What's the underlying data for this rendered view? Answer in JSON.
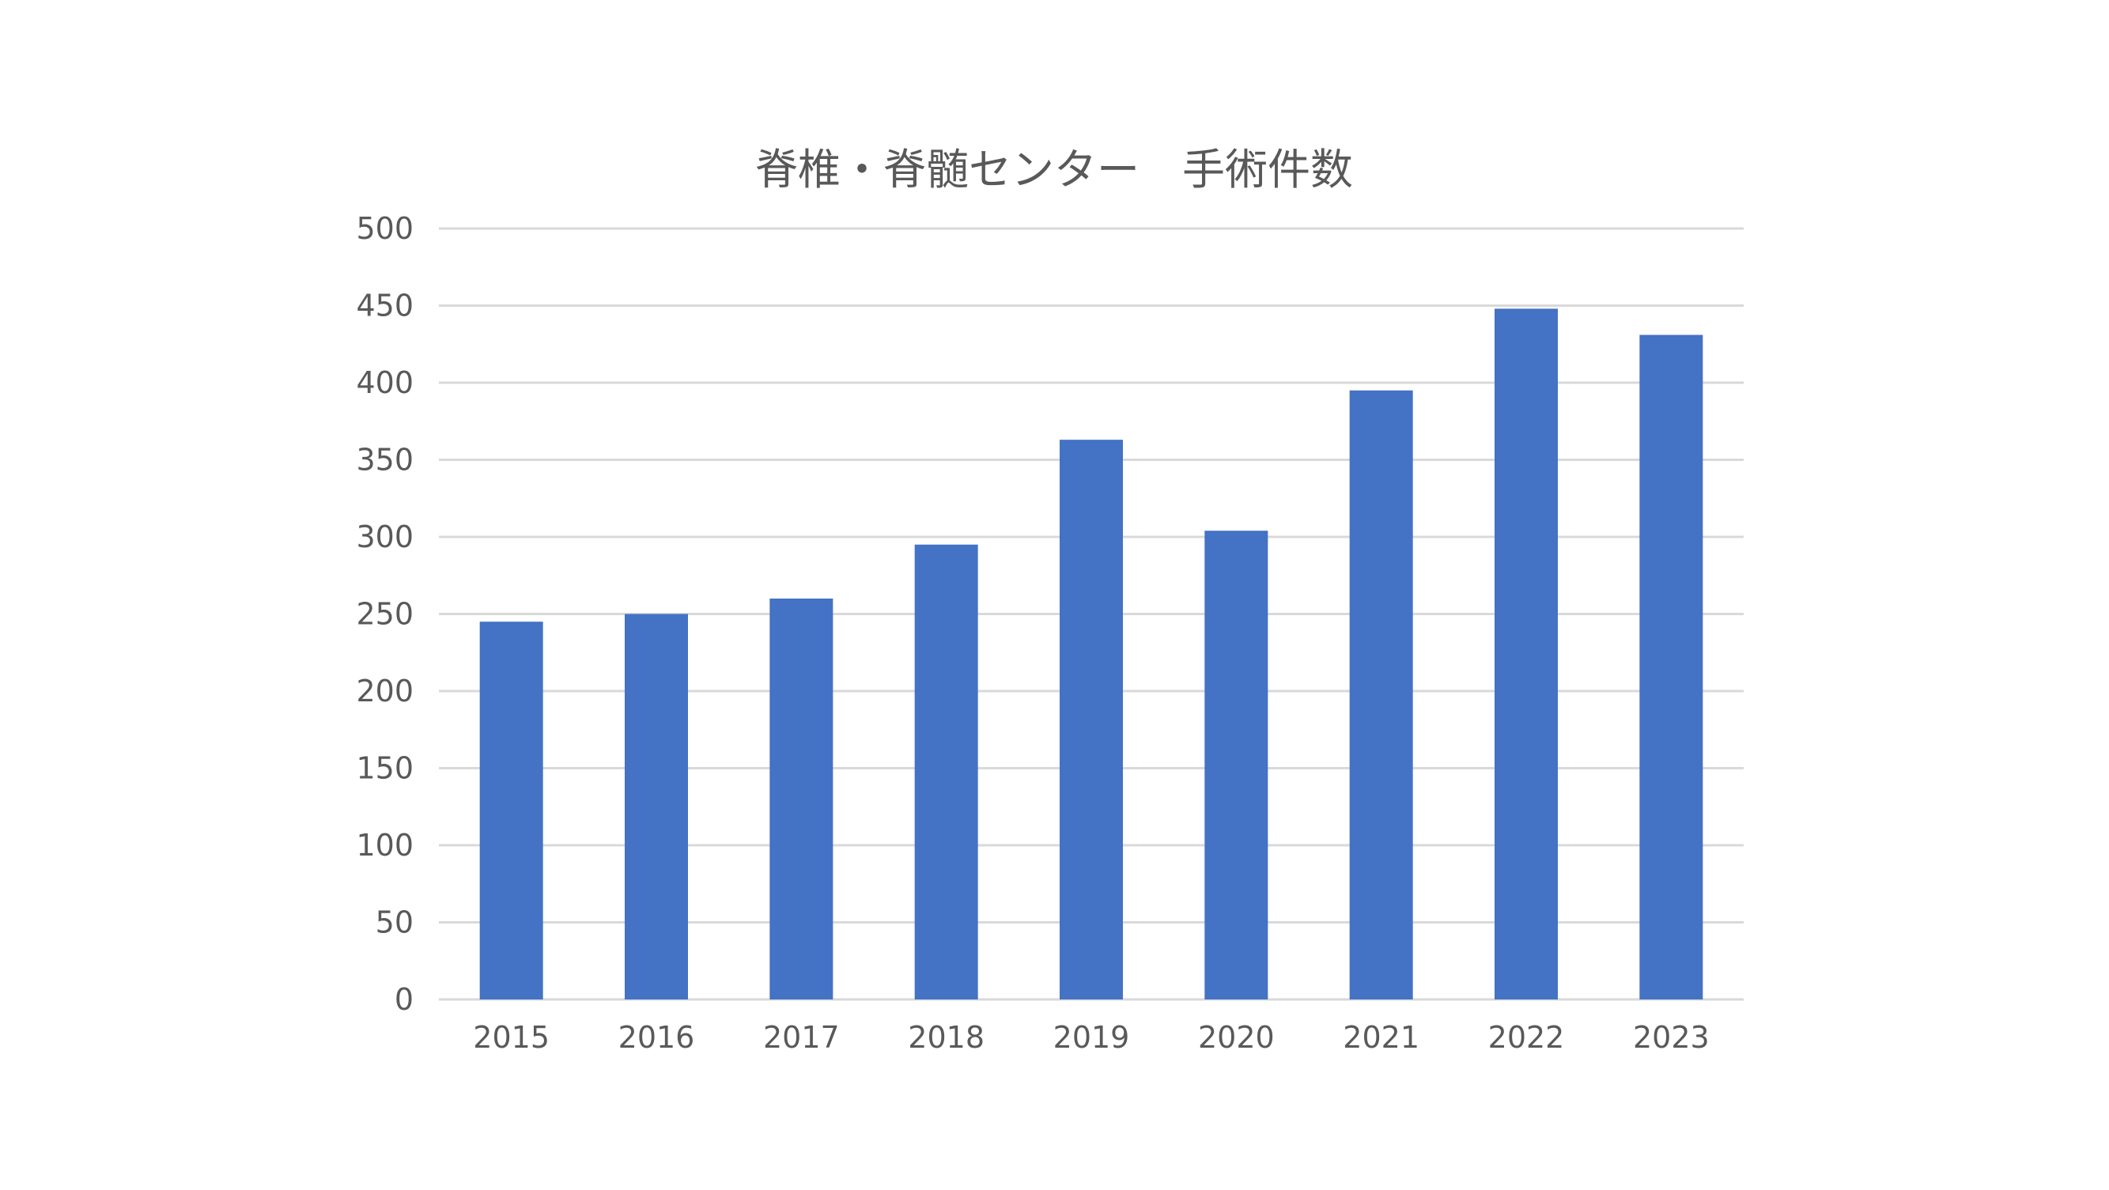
{
  "chart_data": {
    "type": "bar",
    "title": "脊椎・脊髄センター　手術件数",
    "xlabel": "",
    "ylabel": "",
    "categories": [
      "2015",
      "2016",
      "2017",
      "2018",
      "2019",
      "2020",
      "2021",
      "2022",
      "2023"
    ],
    "series": [
      {
        "values": [
          245,
          250,
          260,
          295,
          363,
          304,
          395,
          448,
          431
        ]
      }
    ],
    "ylim": [
      0,
      500
    ],
    "yticks": [
      0,
      50,
      100,
      150,
      200,
      250,
      300,
      350,
      400,
      450,
      500
    ],
    "grid": true,
    "legend": "none",
    "colors": {
      "bar": "#4472c4",
      "grid": "#d9d9d9",
      "text": "#595959"
    }
  }
}
